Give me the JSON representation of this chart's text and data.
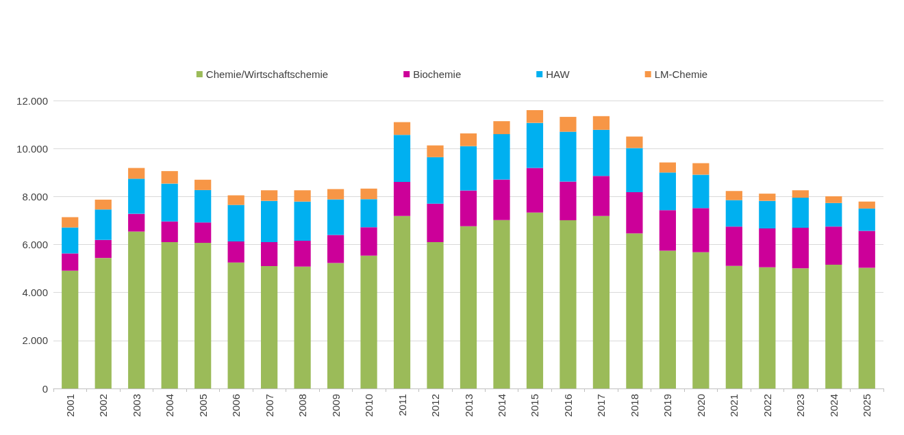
{
  "chart_data": {
    "type": "bar",
    "stacked": true,
    "categories": [
      "2001",
      "2002",
      "2003",
      "2004",
      "2005",
      "2006",
      "2007",
      "2008",
      "2009",
      "2010",
      "2011",
      "2012",
      "2013",
      "2014",
      "2015",
      "2016",
      "2017",
      "2018",
      "2019",
      "2020",
      "2021",
      "2022",
      "2023",
      "2024",
      "2025"
    ],
    "series": [
      {
        "name": "Chemie/Wirtschaftschemie",
        "color": "#9bbb59",
        "values": [
          4910,
          5440,
          6540,
          6100,
          6070,
          5250,
          5100,
          5080,
          5230,
          5540,
          7190,
          6100,
          6760,
          7020,
          7330,
          7010,
          7190,
          6460,
          5740,
          5680,
          5110,
          5050,
          5010,
          5160,
          5030
        ]
      },
      {
        "name": "Biochemie",
        "color": "#cc0099",
        "values": [
          720,
          750,
          740,
          860,
          850,
          880,
          1000,
          1080,
          1170,
          1180,
          1420,
          1600,
          1490,
          1690,
          1860,
          1610,
          1670,
          1720,
          1690,
          1840,
          1640,
          1620,
          1690,
          1590,
          1540
        ]
      },
      {
        "name": "HAW",
        "color": "#00b0f0",
        "values": [
          1080,
          1270,
          1460,
          1580,
          1350,
          1520,
          1720,
          1630,
          1480,
          1170,
          1960,
          1940,
          1850,
          1890,
          1880,
          2080,
          1920,
          1840,
          1570,
          1390,
          1100,
          1150,
          1250,
          980,
          930
        ]
      },
      {
        "name": "LM-Chemie",
        "color": "#f79646",
        "values": [
          430,
          410,
          450,
          520,
          430,
          400,
          440,
          470,
          430,
          440,
          530,
          490,
          530,
          540,
          530,
          620,
          570,
          480,
          420,
          480,
          380,
          300,
          310,
          280,
          290
        ]
      }
    ],
    "ylim": [
      0,
      12000
    ],
    "yticks": [
      0,
      {
        "value": 2000,
        "label": "2.000"
      },
      {
        "value": 4000,
        "label": "4.000"
      },
      {
        "value": 6000,
        "label": "6.000"
      },
      {
        "value": 8000,
        "label": "8.000"
      },
      {
        "value": 10000,
        "label": "10.000"
      },
      {
        "value": 12000,
        "label": "12.000"
      }
    ],
    "grid": "y",
    "legend": "top"
  }
}
